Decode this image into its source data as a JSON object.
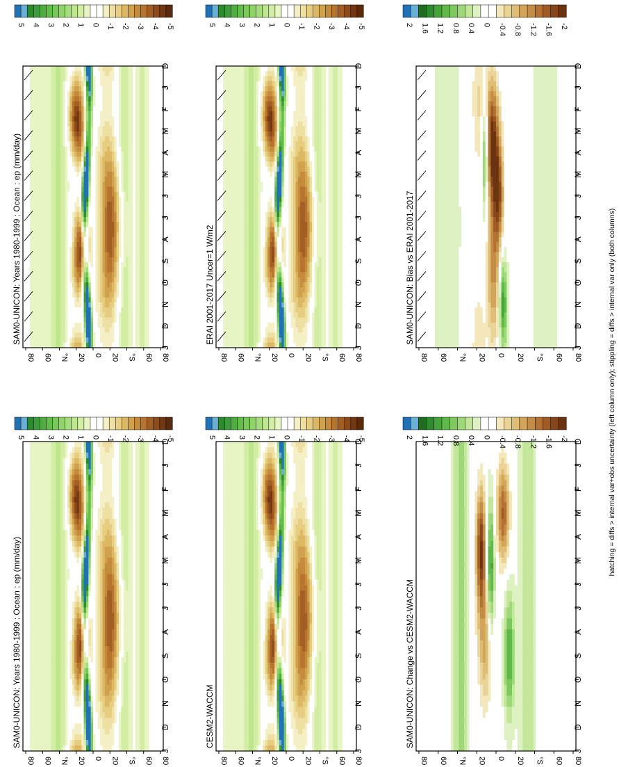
{
  "figure": {
    "footer": "hatching = diffs > internal var+obs uncertainty (left column only); stippling = diffs > internal var only (both columns)"
  },
  "palettes": {
    "precip": [
      "#2171b5",
      "#6baed6",
      "#2b8a2b",
      "#3c9b3c",
      "#4fae3f",
      "#63bd4b",
      "#79c95a",
      "#8fd46a",
      "#a6dd7c",
      "#bde68e",
      "#d3eea4",
      "#e6f5c3",
      "#ffffff",
      "#ffffff",
      "#f5efc6",
      "#eedfa3",
      "#e6cd80",
      "#dcb865",
      "#d1a24e",
      "#c58b3c",
      "#b6742e",
      "#a35e23",
      "#8d4a1a",
      "#733812",
      "#5a2a0c"
    ],
    "diff": [
      "#2171b5",
      "#6baed6",
      "#1f6e1f",
      "#2e8b2e",
      "#45a339",
      "#5fb94a",
      "#7ec95d",
      "#9fd878",
      "#c2e69a",
      "#def1c3",
      "#ffffff",
      "#ffffff",
      "#f3e7bb",
      "#e9d396",
      "#dfbd74",
      "#d3a55a",
      "#c48c44",
      "#b37233",
      "#a05b25",
      "#87461a",
      "#6b3410"
    ]
  },
  "chart_data": [
    {
      "id": "sam0-mean",
      "type": "heatmap",
      "kind": "precip",
      "title": "SAM0-UNICON: Years 1980-1999 : Ocean : ep (mm/day)",
      "xlabel": "Month (Dec–Jan)",
      "ylabel": "Latitude",
      "x_ticks": [
        "D",
        "J",
        "F",
        "M",
        "A",
        "M",
        "J",
        "J",
        "A",
        "S",
        "O",
        "N",
        "D",
        "J"
      ],
      "y_ticks": [
        "80",
        "60",
        "°N",
        "20",
        "0",
        "20",
        "°S",
        "60",
        "80"
      ],
      "ylim": [
        -90,
        90
      ],
      "colorbar": {
        "labels": [
          "5",
          "4",
          "3",
          "2",
          "1",
          "0",
          "-1",
          "-2",
          "-3",
          "-4",
          "-5"
        ]
      },
      "hatching": true,
      "features": {
        "itcz_peak": 6,
        "itcz_min": 5,
        "trades": -5
      }
    },
    {
      "id": "cesm2-mean",
      "type": "heatmap",
      "kind": "precip",
      "title": "SAM0-UNICON: Years 1980-1999 : Ocean : ep (mm/day)",
      "xlabel": "Month (Dec–Jan)",
      "ylabel": "Latitude",
      "x_ticks": [
        "D",
        "J",
        "F",
        "M",
        "A",
        "M",
        "J",
        "J",
        "A",
        "S",
        "O",
        "N",
        "D",
        "J"
      ],
      "y_ticks": [
        "80",
        "60",
        "°N",
        "20",
        "0",
        "20",
        "°S",
        "60",
        "80"
      ],
      "ylim": [
        -90,
        90
      ],
      "colorbar": {
        "labels": [
          "5",
          "4",
          "3",
          "2",
          "1",
          "0",
          "-1",
          "-2",
          "-3",
          "-4",
          "-5"
        ]
      },
      "hatching": false,
      "features": {
        "itcz_peak": 6,
        "itcz_min": 5,
        "trades": -5
      }
    },
    {
      "id": "erai-mean",
      "type": "heatmap",
      "kind": "precip",
      "title": "ERAI 2001-2017 Uncer=1 W/m2",
      "xlabel": "Month (Dec–Jan)",
      "ylabel": "Latitude",
      "x_ticks": [
        "D",
        "J",
        "F",
        "M",
        "A",
        "M",
        "J",
        "J",
        "A",
        "S",
        "O",
        "N",
        "D",
        "J"
      ],
      "y_ticks": [
        "80",
        "60",
        "°N",
        "20",
        "0",
        "20",
        "°S",
        "60",
        "80"
      ],
      "ylim": [
        -90,
        90
      ],
      "colorbar": {
        "labels": [
          "5",
          "4",
          "3",
          "2",
          "1",
          "0",
          "-1",
          "-2",
          "-3",
          "-4",
          "-5"
        ]
      },
      "hatching": true,
      "features": {
        "itcz_peak": 6,
        "itcz_min": 5,
        "trades": -5
      }
    },
    {
      "id": "cesm2-waccm-mean",
      "type": "heatmap",
      "kind": "precip",
      "title": "CESM2-WACCM",
      "xlabel": "Month (Dec–Jan)",
      "ylabel": "Latitude",
      "x_ticks": [
        "D",
        "J",
        "F",
        "M",
        "A",
        "M",
        "J",
        "J",
        "A",
        "S",
        "O",
        "N",
        "D",
        "J"
      ],
      "y_ticks": [
        "80",
        "60",
        "°N",
        "20",
        "0",
        "20",
        "°S",
        "60",
        "80"
      ],
      "ylim": [
        -90,
        90
      ],
      "colorbar": {
        "labels": [
          "5",
          "4",
          "3",
          "2",
          "1",
          "0",
          "-1",
          "-2",
          "-3",
          "-4",
          "-5"
        ]
      },
      "hatching": false,
      "features": {
        "itcz_peak": 6,
        "itcz_min": 5,
        "trades": -5
      }
    },
    {
      "id": "bias-vs-erai",
      "type": "heatmap",
      "kind": "diff",
      "title": "SAM0-UNICON: Bias vs ERAI 2001-2017",
      "xlabel": "Month (Dec–Jan)",
      "ylabel": "Latitude",
      "x_ticks": [
        "D",
        "J",
        "F",
        "M",
        "A",
        "M",
        "J",
        "J",
        "A",
        "S",
        "O",
        "N",
        "D",
        "J"
      ],
      "y_ticks": [
        "80",
        "60",
        "°N",
        "20",
        "0",
        "20",
        "°S",
        "60",
        "80"
      ],
      "ylim": [
        -90,
        90
      ],
      "colorbar": {
        "labels": [
          "2",
          "1.6",
          "1.2",
          "0.8",
          "0.4",
          "0",
          "-0.4",
          "-0.8",
          "-1.2",
          "-1.6",
          "-2"
        ]
      },
      "hatching": true,
      "features": {
        "max_diff": 2.2,
        "min_diff": -2.2
      }
    },
    {
      "id": "change-vs-cesm2",
      "type": "heatmap",
      "kind": "diff",
      "title": "SAM0-UNICON: Change vs CESM2-WACCM",
      "xlabel": "Month (Dec–Jan)",
      "ylabel": "Latitude",
      "x_ticks": [
        "D",
        "J",
        "F",
        "M",
        "A",
        "M",
        "J",
        "J",
        "A",
        "S",
        "O",
        "N",
        "D",
        "J"
      ],
      "y_ticks": [
        "80",
        "60",
        "°N",
        "20",
        "0",
        "20",
        "°S",
        "60",
        "80"
      ],
      "ylim": [
        -90,
        90
      ],
      "colorbar": {
        "labels": [
          "2",
          "1.6",
          "1.2",
          "0.8",
          "0.4",
          "0",
          "-0.4",
          "-0.8",
          "-1.2",
          "-1.6",
          "-2"
        ]
      },
      "hatching": false,
      "features": {
        "max_diff": 2.2,
        "min_diff": -2.2
      }
    }
  ]
}
